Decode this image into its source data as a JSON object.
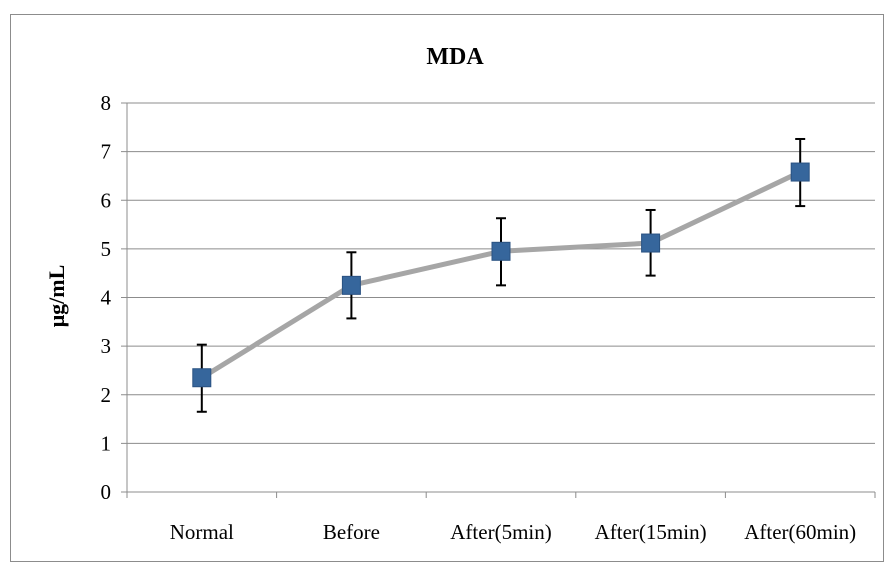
{
  "chart_data": {
    "type": "line",
    "title": "MDA",
    "xlabel": "",
    "ylabel": "μg/mL",
    "categories": [
      "Normal",
      "Before",
      "After(5min)",
      "After(15min)",
      "After(60min)"
    ],
    "series": [
      {
        "values": [
          2.35,
          4.25,
          4.95,
          5.12,
          6.58
        ],
        "error_low": [
          1.65,
          3.57,
          4.25,
          4.45,
          5.88
        ],
        "error_high": [
          3.03,
          4.93,
          5.63,
          5.8,
          7.26
        ],
        "line_color": "#a6a6a6",
        "marker_color": "#36669c",
        "marker_shape": "square"
      }
    ],
    "ylim": [
      0,
      8
    ],
    "yticks": [
      "0",
      "1",
      "2",
      "3",
      "4",
      "5",
      "6",
      "7",
      "8"
    ],
    "grid": true,
    "legend": "none"
  },
  "colors": {
    "gridline": "#8c8c8c",
    "axis": "#8c8c8c",
    "errorbar": "#000000"
  }
}
